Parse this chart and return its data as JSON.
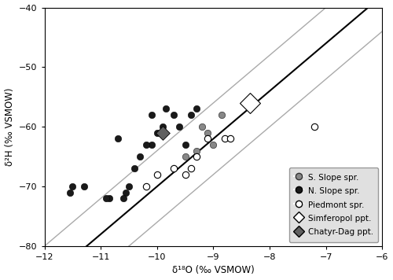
{
  "xlabel": "δ¹⁸O (‰ VSMOW)",
  "ylabel": "δ²H (‰ VSMOW)",
  "xlim": [
    -12,
    -6
  ],
  "ylim": [
    -80,
    -40
  ],
  "xticks": [
    -12,
    -11,
    -10,
    -9,
    -8,
    -7,
    -6
  ],
  "yticks": [
    -80,
    -70,
    -60,
    -50,
    -40
  ],
  "GMWL": {
    "slope": 8,
    "intercept": 10,
    "color": "#000000",
    "lw": 1.5
  },
  "line2": {
    "slope": 8,
    "intercept": 4,
    "color": "#aaaaaa",
    "lw": 1.0
  },
  "line3": {
    "slope": 8,
    "intercept": 16,
    "color": "#aaaaaa",
    "lw": 1.0
  },
  "s_slope_x": [
    -9.3,
    -9.1,
    -9.0,
    -9.5,
    -8.85,
    -9.2
  ],
  "s_slope_y": [
    -64,
    -61,
    -63,
    -65,
    -58,
    -60
  ],
  "n_slope_x": [
    -10.5,
    -10.55,
    -10.6,
    -10.3,
    -10.1,
    -10.0,
    -9.9,
    -9.85,
    -9.7,
    -9.6,
    -9.5,
    -10.4,
    -10.2,
    -10.7,
    -10.85,
    -10.9,
    -11.5,
    -11.55,
    -11.3,
    -9.4,
    -9.3,
    -10.1
  ],
  "n_slope_y": [
    -70,
    -71,
    -72,
    -65,
    -63,
    -61,
    -60,
    -57,
    -58,
    -60,
    -63,
    -67,
    -63,
    -62,
    -72,
    -72,
    -70,
    -71,
    -70,
    -58,
    -57,
    -58
  ],
  "piedmont_x": [
    -10.2,
    -10.0,
    -9.7,
    -9.5,
    -9.4,
    -9.3,
    -9.1,
    -8.8,
    -8.7,
    -7.2
  ],
  "piedmont_y": [
    -70,
    -68,
    -67,
    -68,
    -67,
    -65,
    -62,
    -62,
    -62,
    -60
  ],
  "simferopol_x": [
    -8.35
  ],
  "simferopol_y": [
    -56
  ],
  "chatyr_x": [
    -9.9
  ],
  "chatyr_y": [
    -61
  ],
  "s_slope_color": "#888888",
  "n_slope_color": "#1a1a1a",
  "chatyr_color": "#606060",
  "legend_bg": "#e0e0e0",
  "marker_size": 6
}
